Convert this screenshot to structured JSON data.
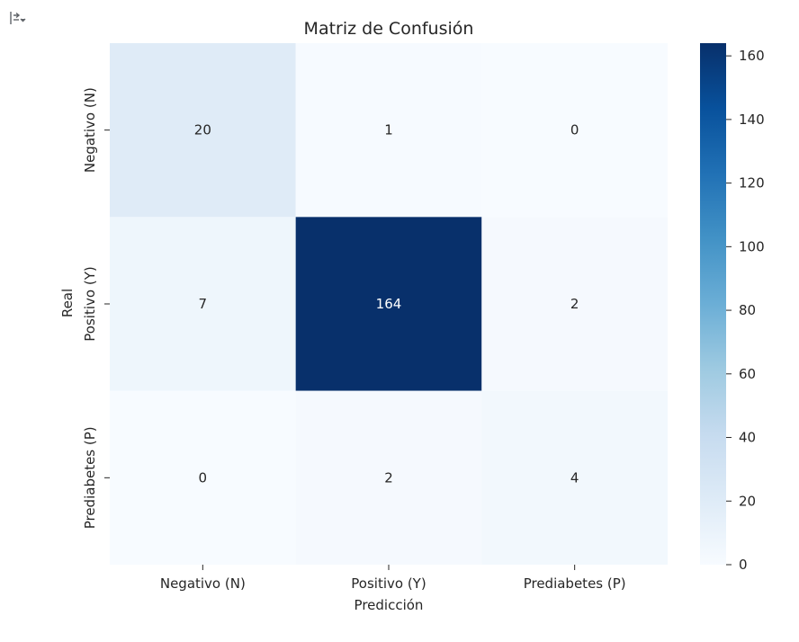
{
  "toolbar": {
    "output_icon": "output-expand-icon"
  },
  "chart_data": {
    "type": "heatmap",
    "title": "Matriz de Confusión",
    "xlabel": "Predicción",
    "ylabel": "Real",
    "x_categories": [
      "Negativo (N)",
      "Positivo (Y)",
      "Prediabetes (P)"
    ],
    "y_categories": [
      "Negativo (N)",
      "Positivo (Y)",
      "Prediabetes (P)"
    ],
    "values": [
      [
        20,
        1,
        0
      ],
      [
        7,
        164,
        2
      ],
      [
        0,
        2,
        4
      ]
    ],
    "colormap": "Blues",
    "colorbar": {
      "range": [
        0,
        164
      ],
      "ticks": [
        0,
        20,
        40,
        60,
        80,
        100,
        120,
        140,
        160
      ]
    }
  }
}
